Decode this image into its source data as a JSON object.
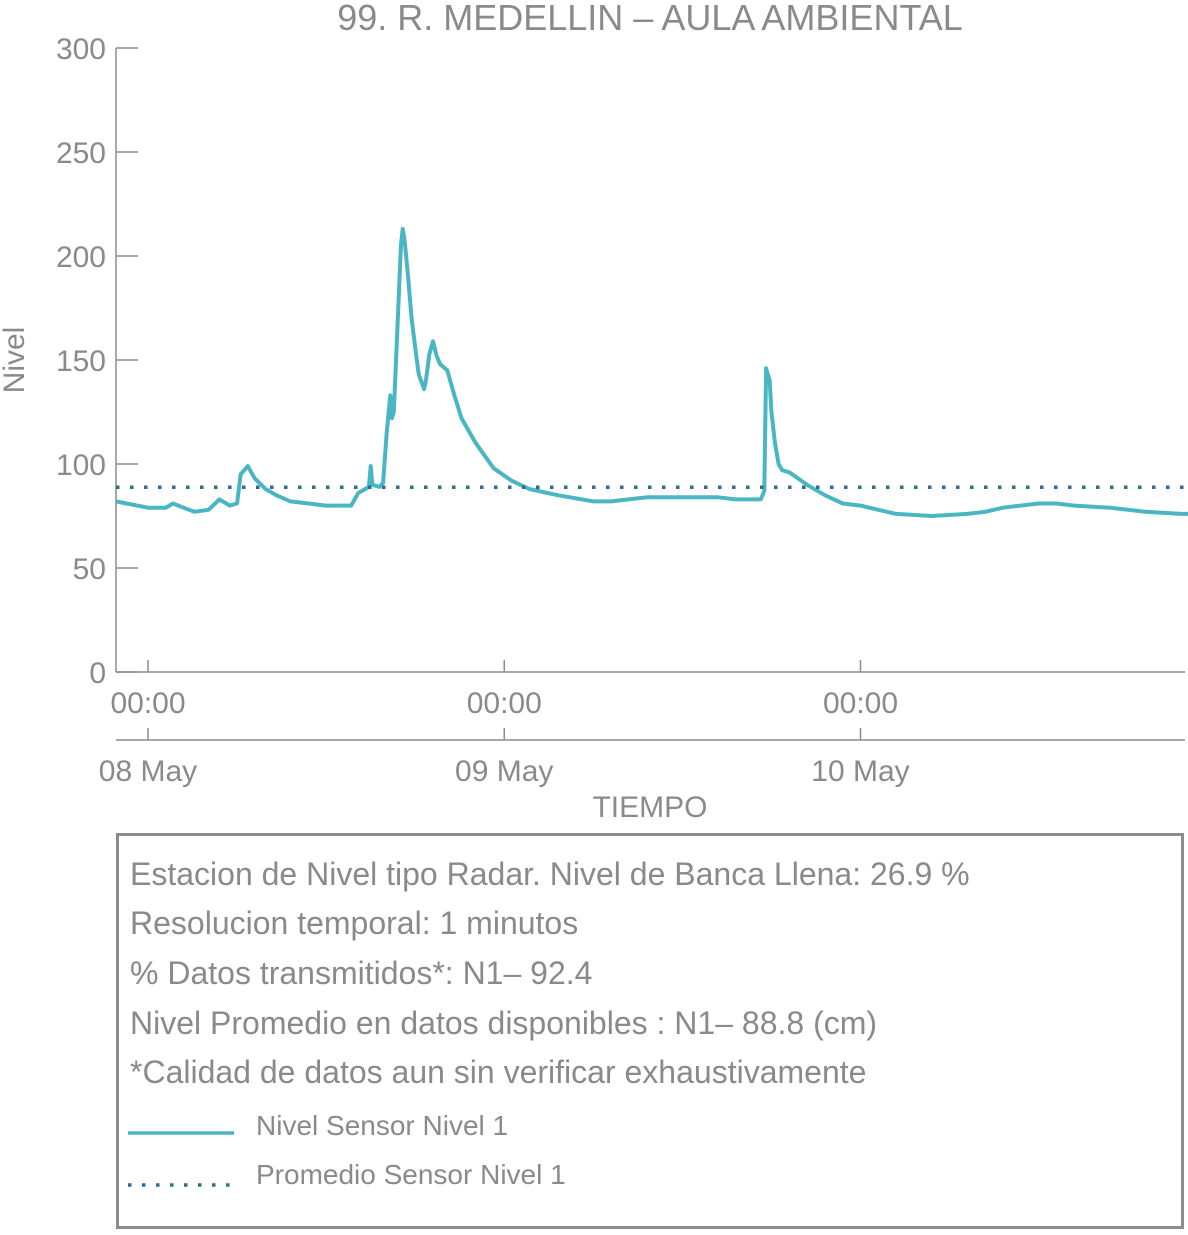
{
  "chart_data": {
    "type": "line",
    "title": "99. R. MEDELLIN – AULA AMBIENTAL",
    "xlabel": "TIEMPO",
    "ylabel": "Nivel",
    "ylim": [
      0,
      300
    ],
    "yticks": [
      "0",
      "50",
      "100",
      "150",
      "200",
      "250",
      "300"
    ],
    "xlim_days": [
      -0.09,
      2.92
    ],
    "xticks": [
      {
        "day": 0,
        "time": "00:00",
        "date": "08 May"
      },
      {
        "day": 1,
        "time": "00:00",
        "date": "09 May"
      },
      {
        "day": 2,
        "time": "00:00",
        "date": "10 May"
      }
    ],
    "grid": false,
    "series": [
      {
        "name": "Nivel Sensor Nivel 1",
        "color": "#4ab6c4",
        "style": "solid",
        "points": [
          [
            -0.09,
            82
          ],
          [
            0.0,
            79
          ],
          [
            0.05,
            79
          ],
          [
            0.07,
            81
          ],
          [
            0.1,
            79
          ],
          [
            0.13,
            77
          ],
          [
            0.17,
            78
          ],
          [
            0.2,
            83
          ],
          [
            0.23,
            80
          ],
          [
            0.25,
            81
          ],
          [
            0.26,
            95
          ],
          [
            0.28,
            99
          ],
          [
            0.3,
            93
          ],
          [
            0.33,
            88
          ],
          [
            0.36,
            85
          ],
          [
            0.4,
            82
          ],
          [
            0.45,
            81
          ],
          [
            0.5,
            80
          ],
          [
            0.55,
            80
          ],
          [
            0.57,
            80
          ],
          [
            0.59,
            86
          ],
          [
            0.62,
            89
          ],
          [
            0.625,
            99
          ],
          [
            0.63,
            90
          ],
          [
            0.65,
            89
          ],
          [
            0.66,
            91
          ],
          [
            0.67,
            115
          ],
          [
            0.68,
            133
          ],
          [
            0.685,
            122
          ],
          [
            0.69,
            125
          ],
          [
            0.7,
            165
          ],
          [
            0.71,
            205
          ],
          [
            0.715,
            213
          ],
          [
            0.72,
            208
          ],
          [
            0.73,
            190
          ],
          [
            0.74,
            170
          ],
          [
            0.75,
            156
          ],
          [
            0.76,
            143
          ],
          [
            0.775,
            136
          ],
          [
            0.78,
            140
          ],
          [
            0.79,
            153
          ],
          [
            0.8,
            159
          ],
          [
            0.81,
            152
          ],
          [
            0.82,
            148
          ],
          [
            0.84,
            145
          ],
          [
            0.86,
            133
          ],
          [
            0.88,
            122
          ],
          [
            0.92,
            110
          ],
          [
            0.97,
            98
          ],
          [
            1.02,
            92
          ],
          [
            1.07,
            88
          ],
          [
            1.15,
            85
          ],
          [
            1.25,
            82
          ],
          [
            1.3,
            82
          ],
          [
            1.4,
            84
          ],
          [
            1.5,
            84
          ],
          [
            1.6,
            84
          ],
          [
            1.65,
            83
          ],
          [
            1.7,
            83
          ],
          [
            1.72,
            83
          ],
          [
            1.73,
            87
          ],
          [
            1.735,
            146
          ],
          [
            1.745,
            140
          ],
          [
            1.75,
            125
          ],
          [
            1.76,
            110
          ],
          [
            1.77,
            100
          ],
          [
            1.78,
            97
          ],
          [
            1.8,
            96
          ],
          [
            1.85,
            90
          ],
          [
            1.9,
            85
          ],
          [
            1.95,
            81
          ],
          [
            2.0,
            80
          ],
          [
            2.05,
            78
          ],
          [
            2.1,
            76
          ],
          [
            2.2,
            75
          ],
          [
            2.3,
            76
          ],
          [
            2.35,
            77
          ],
          [
            2.4,
            79
          ],
          [
            2.45,
            80
          ],
          [
            2.5,
            81
          ],
          [
            2.55,
            81
          ],
          [
            2.6,
            80
          ],
          [
            2.7,
            79
          ],
          [
            2.8,
            77
          ],
          [
            2.9,
            76
          ],
          [
            2.92,
            76
          ]
        ]
      },
      {
        "name": "Promedio Sensor Nivel 1",
        "color": "#2e6e8a",
        "style": "dotted",
        "constant": 88.8
      }
    ]
  },
  "info": {
    "lines": [
      "Estacion de Nivel tipo Radar. Nivel de Banca Llena: 26.9 %",
      "Resolucion temporal: 1 minutos",
      "% Datos transmitidos*: N1– 92.4",
      "Nivel Promedio en datos disponibles : N1– 88.8 (cm)",
      "*Calidad de datos aun sin verificar exhaustivamente"
    ],
    "legend": [
      {
        "label": "Nivel Sensor Nivel 1"
      },
      {
        "label": "Promedio Sensor Nivel 1"
      }
    ]
  }
}
